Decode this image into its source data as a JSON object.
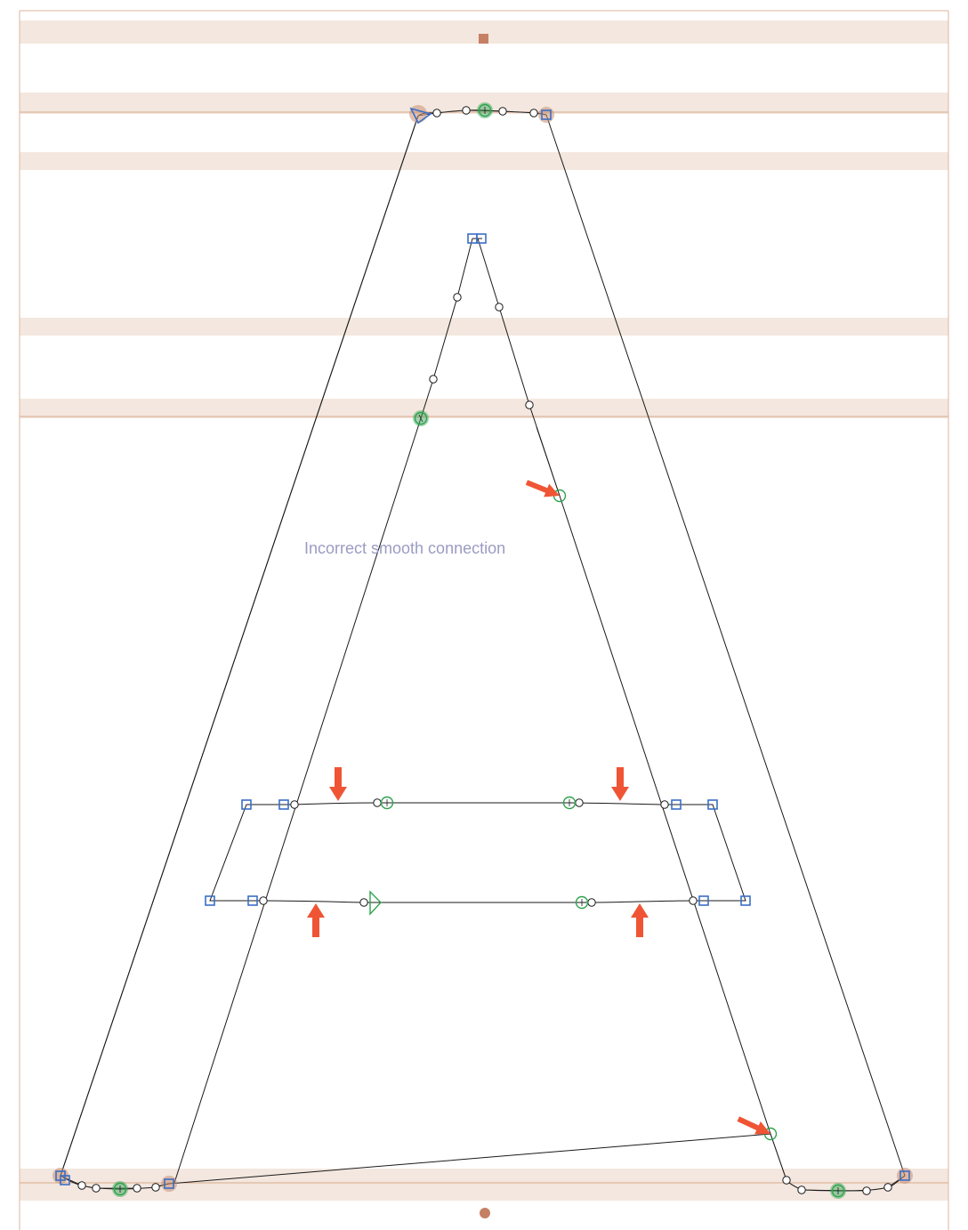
{
  "annotation": {
    "text": "Incorrect smooth connection"
  },
  "glyph": {
    "name": "A",
    "contours": 3,
    "issue_markers": 6
  },
  "colors": {
    "zone": "#f3e7df",
    "corner_node": "#3a6ec6",
    "smooth_node": "#2fa24f",
    "issue_arrow": "#ef5535",
    "annotation_text": "#9a9cc2"
  }
}
